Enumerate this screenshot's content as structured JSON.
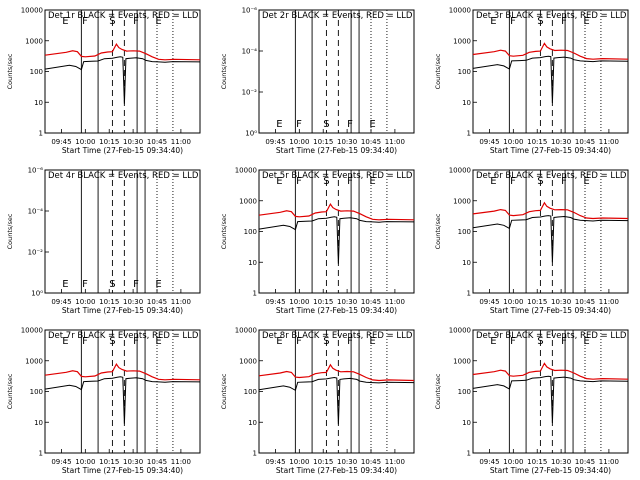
{
  "chart_data": {
    "type": "line",
    "colors": {
      "events": "#000000",
      "lld": "#e00000",
      "background": "#ffffff"
    },
    "x_ticks": [
      "09:45",
      "10:00",
      "10:15",
      "10:30",
      "10:45",
      "11:00"
    ],
    "xlabel": "Start Time (27-Feb-15 09:34:40)",
    "ylabel": "Counts/sec",
    "y_ticks_log": [
      "1",
      "10",
      "100",
      "1000",
      "10000"
    ],
    "y_ticks_empty": [
      "10⁰",
      "10⁻²",
      "10⁻⁴",
      "10⁻⁶"
    ],
    "panels": [
      {
        "title": "Det 1r  BLACK = Events, RED = LLD",
        "has_data": true,
        "markers": [
          "E",
          "F",
          "S",
          "F",
          "E"
        ]
      },
      {
        "title": "Det 2r  BLACK = Events, RED = LLD",
        "has_data": false,
        "markers": [
          "E",
          "F",
          "S",
          "F",
          "E"
        ]
      },
      {
        "title": "Det 3r  BLACK = Events, RED = LLD",
        "has_data": true,
        "markers": [
          "E",
          "F",
          "S",
          "F",
          "E"
        ]
      },
      {
        "title": "Det 4r  BLACK = Events, RED = LLD",
        "has_data": false,
        "markers": [
          "E",
          "F",
          "S",
          "F",
          "E"
        ]
      },
      {
        "title": "Det 5r  BLACK = Events, RED = LLD",
        "has_data": true,
        "markers": [
          "E",
          "F",
          "S",
          "F",
          "E"
        ]
      },
      {
        "title": "Det 6r  BLACK = Events, RED = LLD",
        "has_data": true,
        "markers": [
          "E",
          "F",
          "S",
          "F",
          "E"
        ]
      },
      {
        "title": "Det 7r  BLACK = Events, RED = LLD",
        "has_data": true,
        "markers": [
          "E",
          "F",
          "S",
          "F",
          "E"
        ]
      },
      {
        "title": "Det 8r  BLACK = Events, RED = LLD",
        "has_data": true,
        "markers": [
          "E",
          "F",
          "S",
          "F",
          "E"
        ]
      },
      {
        "title": "Det 9r  BLACK = Events, RED = LLD",
        "has_data": true,
        "markers": [
          "E",
          "F",
          "S",
          "F",
          "E"
        ]
      }
    ]
  }
}
